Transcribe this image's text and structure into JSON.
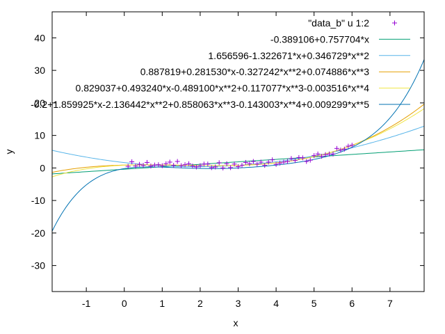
{
  "chart_data": {
    "type": "scatter",
    "title": "",
    "xlabel": "x",
    "ylabel": "y",
    "xlim": [
      -1.9,
      7.9
    ],
    "ylim": [
      -38,
      48
    ],
    "xticks": [
      -1,
      0,
      1,
      2,
      3,
      4,
      5,
      6,
      7
    ],
    "yticks": [
      -30,
      -20,
      -10,
      0,
      10,
      20,
      30,
      40
    ],
    "grid": false,
    "legend_position": "top-right",
    "scatter": {
      "name": "\"data_b\" u 1:2",
      "color": "#9400d3",
      "marker": "plus",
      "x": [
        0.1,
        0.2,
        0.3,
        0.4,
        0.5,
        0.6,
        0.7,
        0.8,
        0.9,
        1.0,
        1.1,
        1.2,
        1.3,
        1.4,
        1.5,
        1.6,
        1.7,
        1.8,
        1.9,
        2.0,
        2.1,
        2.2,
        2.3,
        2.4,
        2.5,
        2.6,
        2.7,
        2.8,
        2.9,
        3.0,
        3.1,
        3.2,
        3.3,
        3.4,
        3.5,
        3.6,
        3.7,
        3.8,
        3.9,
        4.0,
        4.1,
        4.2,
        4.3,
        4.4,
        4.5,
        4.6,
        4.7,
        4.8,
        4.9,
        5.0,
        5.1,
        5.2,
        5.3,
        5.4,
        5.5,
        5.6,
        5.7,
        5.8,
        5.9,
        6.0
      ],
      "y": [
        0.5,
        1.9,
        0.6,
        1.1,
        0.8,
        1.7,
        0.6,
        0.9,
        1.0,
        0.7,
        1.3,
        1.8,
        0.8,
        2.0,
        0.7,
        1.0,
        1.3,
        0.6,
        0.3,
        0.7,
        1.2,
        1.2,
        0.1,
        0.3,
        1.6,
        0.0,
        1.3,
        0.1,
        1.2,
        0.4,
        0.8,
        1.7,
        1.3,
        2.0,
        1.2,
        1.8,
        0.8,
        1.8,
        2.5,
        1.1,
        1.5,
        1.8,
        2.0,
        2.9,
        2.3,
        3.2,
        3.1,
        2.0,
        2.4,
        3.8,
        4.3,
        3.6,
        4.1,
        4.3,
        4.3,
        6.0,
        5.5,
        5.8,
        6.7,
        7.0
      ]
    },
    "series": [
      {
        "name": "-0.389106+0.757704*x",
        "color": "#009e73",
        "coefficients": [
          -0.389106,
          0.757704
        ]
      },
      {
        "name": "1.656596-1.322671*x+0.346729*x**2",
        "color": "#56b4e9",
        "coefficients": [
          1.656596,
          -1.322671,
          0.346729
        ]
      },
      {
        "name": "0.887819+0.281530*x-0.327242*x**2+0.074886*x**3",
        "color": "#e69f00",
        "coefficients": [
          0.887819,
          0.28153,
          -0.327242,
          0.074886
        ]
      },
      {
        "name": "0.829037+0.493240*x-0.489100*x**2+0.117077*x**3-0.003516*x**4",
        "color": "#f0e442",
        "coefficients": [
          0.829037,
          0.49324,
          -0.4891,
          0.117077,
          -0.003516
        ]
      },
      {
        "name": "-0.2+1.859925*x-2.136442*x**2+0.858063*x**3-0.143003*x**4+0.009299*x**5",
        "color": "#0072b2",
        "coefficients": [
          -0.2,
          1.859925,
          -2.136442,
          0.858063,
          -0.143003,
          0.009299
        ]
      }
    ]
  }
}
